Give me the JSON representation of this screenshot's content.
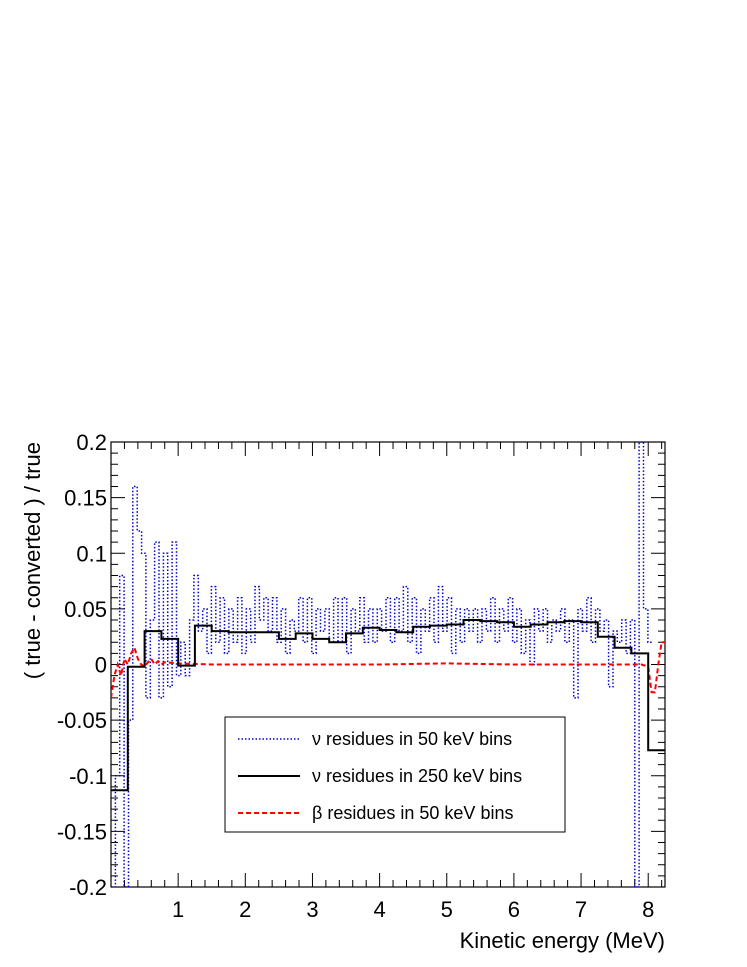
{
  "chart_data": {
    "type": "line",
    "xlabel": "Kinetic energy (MeV)",
    "ylabel": "( true - converted ) / true",
    "xlim": [
      0.0,
      8.25
    ],
    "ylim": [
      -0.2,
      0.2
    ],
    "x_ticks": [
      1,
      2,
      3,
      4,
      5,
      6,
      7,
      8
    ],
    "x_tick_labels": [
      "1",
      "2",
      "3",
      "4",
      "5",
      "6",
      "7",
      "8"
    ],
    "y_ticks": [
      -0.2,
      -0.15,
      -0.1,
      -0.05,
      0,
      0.05,
      0.1,
      0.15,
      0.2
    ],
    "y_tick_labels": [
      "-0.2",
      "-0.15",
      "-0.1",
      "-0.05",
      "0",
      "0.05",
      "0.1",
      "0.15",
      "0.2"
    ],
    "legend_position": "bottom-center",
    "series": [
      {
        "name": "ν residues in 50 keV bins",
        "style": "dotted",
        "color": "#0000cc",
        "step": 0.1,
        "x_start": 0.0,
        "values": [
          -0.2,
          -0.1,
          0.08,
          -0.2,
          -0.05,
          0.16,
          0.12,
          0.1,
          -0.03,
          0.04,
          0.11,
          -0.03,
          0.1,
          -0.02,
          0.11,
          -0.01,
          0.02,
          -0.01,
          0.04,
          0.08,
          0.03,
          0.05,
          0.01,
          0.07,
          0.02,
          0.06,
          0.01,
          0.05,
          0.02,
          0.06,
          0.01,
          0.05,
          0.02,
          0.07,
          0.04,
          0.06,
          0.03,
          0.06,
          0.02,
          0.05,
          0.01,
          0.04,
          0.03,
          0.06,
          0.02,
          0.06,
          0.01,
          0.05,
          0.03,
          0.05,
          0.02,
          0.06,
          0.02,
          0.06,
          0.01,
          0.05,
          0.03,
          0.06,
          0.02,
          0.05,
          0.02,
          0.05,
          0.03,
          0.06,
          0.02,
          0.06,
          0.03,
          0.07,
          0.02,
          0.06,
          0.01,
          0.05,
          0.03,
          0.06,
          0.02,
          0.07,
          0.03,
          0.06,
          0.01,
          0.05,
          0.02,
          0.05,
          0.03,
          0.05,
          0.02,
          0.05,
          0.03,
          0.06,
          0.02,
          0.05,
          0.03,
          0.06,
          0.02,
          0.05,
          0.01,
          0.04,
          0.0,
          0.05,
          0.03,
          0.05,
          0.02,
          0.04,
          0.03,
          0.05,
          0.02,
          0.04,
          -0.03,
          0.05,
          0.03,
          0.06,
          0.02,
          0.05,
          0.03,
          0.04,
          -0.02,
          0.03,
          0.02,
          0.04,
          0.01,
          0.04,
          -0.2,
          0.2,
          0.05,
          0.02
        ],
        "values_dx": 0.065
      },
      {
        "name": "ν residues in 250 keV bins",
        "style": "solid",
        "color": "#000000",
        "edges": [
          0.0,
          0.25,
          0.5,
          0.75,
          1.0,
          1.25,
          1.5,
          1.75,
          2.0,
          2.25,
          2.5,
          2.75,
          3.0,
          3.25,
          3.5,
          3.75,
          4.0,
          4.25,
          4.5,
          4.75,
          5.0,
          5.25,
          5.5,
          5.75,
          6.0,
          6.25,
          6.5,
          6.75,
          7.0,
          7.25,
          7.5,
          7.75,
          8.0,
          8.25
        ],
        "values": [
          -0.113,
          -0.002,
          0.03,
          0.023,
          -0.001,
          0.035,
          0.03,
          0.029,
          0.029,
          0.029,
          0.023,
          0.028,
          0.023,
          0.02,
          0.028,
          0.033,
          0.031,
          0.029,
          0.034,
          0.035,
          0.036,
          0.04,
          0.039,
          0.038,
          0.034,
          0.036,
          0.038,
          0.039,
          0.038,
          0.025,
          0.015,
          0.01,
          -0.077
        ]
      },
      {
        "name": "β residues in 50 keV bins",
        "style": "dashed",
        "color": "#ff0000",
        "points": [
          [
            0.0,
            -0.03
          ],
          [
            0.05,
            -0.01
          ],
          [
            0.1,
            0.0
          ],
          [
            0.15,
            -0.01
          ],
          [
            0.2,
            0.005
          ],
          [
            0.25,
            0.0
          ],
          [
            0.3,
            0.01
          ],
          [
            0.35,
            0.015
          ],
          [
            0.4,
            0.005
          ],
          [
            0.45,
            0.0
          ],
          [
            0.5,
            -0.002
          ],
          [
            0.55,
            0.002
          ],
          [
            0.6,
            0.005
          ],
          [
            0.65,
            0.0
          ],
          [
            0.7,
            0.003
          ],
          [
            0.75,
            0.0
          ],
          [
            0.8,
            0.002
          ],
          [
            1.0,
            0.001
          ],
          [
            1.5,
            0.0
          ],
          [
            2.0,
            0.0
          ],
          [
            3.0,
            0.0
          ],
          [
            4.0,
            0.0
          ],
          [
            5.0,
            0.001
          ],
          [
            6.0,
            0.0
          ],
          [
            7.0,
            0.0
          ],
          [
            7.9,
            0.0
          ],
          [
            8.0,
            -0.002
          ],
          [
            8.05,
            -0.025
          ],
          [
            8.1,
            -0.025
          ],
          [
            8.15,
            0.0
          ],
          [
            8.2,
            0.02
          ],
          [
            8.25,
            0.02
          ]
        ]
      }
    ]
  }
}
